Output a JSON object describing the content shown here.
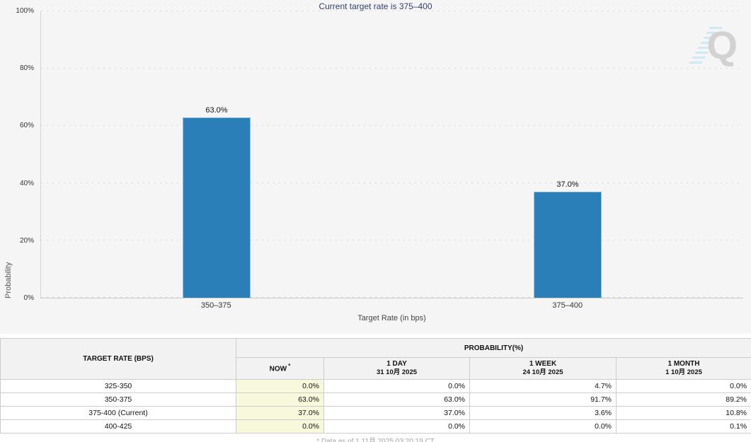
{
  "page": {
    "watermark_letter": "Q",
    "footnote": "* Data as of 1 11月 2025 03:20:19 CT"
  },
  "chart_data": {
    "type": "bar",
    "title": "Current target rate is 375–400",
    "categories": [
      "350–375",
      "375–400"
    ],
    "values": [
      63.0,
      37.0
    ],
    "bar_labels": [
      "63.0%",
      "37.0%"
    ],
    "xlabel": "Target Rate (in bps)",
    "ylabel": "Probability",
    "ylim": [
      0,
      100
    ],
    "ytick_step": 20,
    "yticks": [
      "0%",
      "20%",
      "40%",
      "60%",
      "80%",
      "100%"
    ],
    "grid": "dotted-horizontal",
    "legend": "none",
    "bar_color": "#2b7fb8"
  },
  "table": {
    "col1_header": "TARGET RATE (BPS)",
    "group_header": "PROBABILITY(%)",
    "columns": [
      {
        "label": "NOW",
        "sup": "*",
        "sub": ""
      },
      {
        "label": "1 DAY",
        "sup": "",
        "sub": "31 10月 2025"
      },
      {
        "label": "1 WEEK",
        "sup": "",
        "sub": "24 10月 2025"
      },
      {
        "label": "1 MONTH",
        "sup": "",
        "sub": "1 10月 2025"
      }
    ],
    "rows": [
      {
        "rate": "325-350",
        "values": [
          "0.0%",
          "0.0%",
          "4.7%",
          "0.0%"
        ]
      },
      {
        "rate": "350-375",
        "values": [
          "63.0%",
          "63.0%",
          "91.7%",
          "89.2%"
        ]
      },
      {
        "rate": "375-400 (Current)",
        "values": [
          "37.0%",
          "37.0%",
          "3.6%",
          "10.8%"
        ]
      },
      {
        "rate": "400-425",
        "values": [
          "0.0%",
          "0.0%",
          "0.0%",
          "0.1%"
        ]
      }
    ],
    "highlight_color": "#f8f8dc"
  }
}
